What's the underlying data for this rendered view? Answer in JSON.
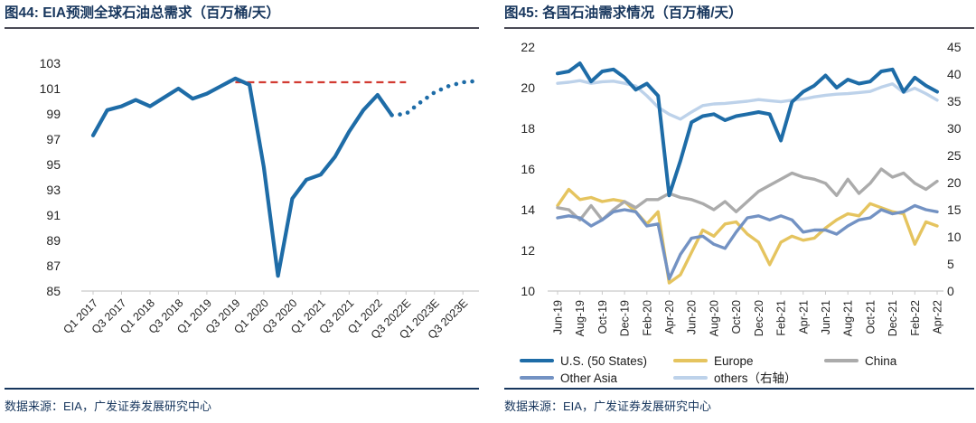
{
  "figures": [
    {
      "id": "fig44",
      "title": "图44:  EIA预测全球石油总需求（百万桶/天）",
      "source": "数据来源：EIA，广发证券发展研究中心"
    },
    {
      "id": "fig45",
      "title": "图45:  各国石油需求情况（百万桶/天）",
      "source": "数据来源：EIA，广发证券发展研究中心"
    }
  ],
  "colors": {
    "title_navy": "#17365D",
    "us_blue": "#1E6CA7",
    "europe_yellow": "#E5C45F",
    "china_gray": "#ABABAB",
    "other_asia_blue": "#7392C3",
    "others_lightblue": "#BDD2EA",
    "forecast_red": "#D23B32",
    "axis_line": "#C9C9C9",
    "axis_text": "#262626"
  },
  "chart_data": [
    {
      "type": "line",
      "title": "EIA预测全球石油总需求（百万桶/天）",
      "categories": [
        "Q1 2017",
        "Q2 2017",
        "Q3 2017",
        "Q4 2017",
        "Q1 2018",
        "Q2 2018",
        "Q3 2018",
        "Q4 2018",
        "Q1 2019",
        "Q2 2019",
        "Q3 2019",
        "Q4 2019",
        "Q1 2020",
        "Q2 2020",
        "Q3 2020",
        "Q4 2020",
        "Q1 2021",
        "Q2 2021",
        "Q3 2021",
        "Q4 2021",
        "Q1 2022",
        "Q2 2022",
        "Q3 2022E",
        "Q4 2022E",
        "Q1 2023E",
        "Q2 2023E",
        "Q3 2023E",
        "Q4 2023E"
      ],
      "tick_labels": [
        "Q1 2017",
        "Q3 2017",
        "Q1 2018",
        "Q3 2018",
        "Q1 2019",
        "Q3 2019",
        "Q1 2020",
        "Q3 2020",
        "Q1 2021",
        "Q3 2021",
        "Q1 2022",
        "Q3 2022E",
        "Q1 2023E",
        "Q3 2023E"
      ],
      "series": [
        {
          "name": "全球石油总需求",
          "color": "#1E6CA7",
          "values": [
            97.3,
            99.3,
            99.6,
            100.1,
            99.6,
            100.3,
            101.0,
            100.2,
            100.6,
            101.2,
            101.8,
            101.3,
            94.8,
            86.2,
            92.3,
            93.8,
            94.2,
            95.6,
            97.6,
            99.3,
            100.5,
            98.9,
            99.0,
            99.9,
            100.7,
            101.2,
            101.5,
            101.6
          ],
          "solid_through_index": 21,
          "forecast_style": "dotted"
        }
      ],
      "reference_line": {
        "value": 101.5,
        "color": "#D23B32",
        "style": "dashed",
        "start_index": 10,
        "end_index": 22
      },
      "ylim": [
        85,
        103
      ],
      "ytick_step": 2,
      "grid": false,
      "legend_position": "none"
    },
    {
      "type": "line",
      "title": "各国石油需求情况（百万桶/天）",
      "x": [
        "Jun-19",
        "Jul-19",
        "Aug-19",
        "Sep-19",
        "Oct-19",
        "Nov-19",
        "Dec-19",
        "Jan-20",
        "Feb-20",
        "Mar-20",
        "Apr-20",
        "May-20",
        "Jun-20",
        "Jul-20",
        "Aug-20",
        "Sep-20",
        "Oct-20",
        "Nov-20",
        "Dec-20",
        "Jan-21",
        "Feb-21",
        "Mar-21",
        "Apr-21",
        "May-21",
        "Jun-21",
        "Jul-21",
        "Aug-21",
        "Sep-21",
        "Oct-21",
        "Nov-21",
        "Dec-21",
        "Jan-22",
        "Feb-22",
        "Mar-22",
        "Apr-22"
      ],
      "tick_every": 2,
      "left_axis": {
        "lim": [
          10,
          22
        ],
        "step": 2
      },
      "right_axis": {
        "lim": [
          0,
          45
        ],
        "step": 5
      },
      "series": [
        {
          "name": "U.S. (50 States)",
          "axis": "left",
          "color": "#1E6CA7",
          "width": 4,
          "values": [
            20.7,
            20.8,
            21.2,
            20.3,
            20.8,
            20.9,
            20.5,
            19.9,
            20.2,
            19.6,
            14.7,
            16.4,
            18.3,
            18.6,
            18.7,
            18.4,
            18.6,
            18.7,
            18.8,
            18.7,
            17.4,
            19.3,
            19.8,
            20.1,
            20.6,
            20.0,
            20.4,
            20.2,
            20.3,
            20.8,
            20.9,
            19.8,
            20.5,
            20.1,
            19.8
          ]
        },
        {
          "name": "Europe",
          "axis": "left",
          "color": "#E5C45F",
          "width": 3.4,
          "values": [
            14.2,
            15.0,
            14.5,
            14.6,
            14.4,
            14.5,
            14.4,
            13.9,
            13.3,
            13.9,
            10.4,
            10.8,
            11.9,
            13.0,
            12.7,
            13.3,
            13.4,
            12.8,
            12.4,
            11.3,
            12.4,
            12.7,
            12.5,
            12.6,
            13.1,
            13.5,
            13.8,
            13.7,
            14.3,
            14.1,
            13.9,
            13.8,
            12.3,
            13.4,
            13.2
          ]
        },
        {
          "name": "China",
          "axis": "left",
          "color": "#ABABAB",
          "width": 3.4,
          "values": [
            14.1,
            14.0,
            13.5,
            14.2,
            13.5,
            14.0,
            14.4,
            14.1,
            14.5,
            14.5,
            14.8,
            14.6,
            14.5,
            14.3,
            14.0,
            14.4,
            13.9,
            14.4,
            14.9,
            15.2,
            15.5,
            15.8,
            15.6,
            15.5,
            15.3,
            14.7,
            15.5,
            14.8,
            15.3,
            16.0,
            15.6,
            15.8,
            15.3,
            15.0,
            15.4
          ]
        },
        {
          "name": "Other Asia",
          "axis": "left",
          "color": "#7392C3",
          "width": 3.4,
          "values": [
            13.6,
            13.7,
            13.6,
            13.2,
            13.5,
            13.9,
            14.0,
            13.9,
            13.2,
            13.3,
            10.6,
            11.8,
            12.6,
            12.7,
            12.3,
            12.1,
            12.9,
            13.6,
            13.7,
            13.5,
            13.7,
            13.5,
            12.9,
            13.0,
            13.0,
            12.8,
            13.2,
            13.5,
            13.6,
            14.0,
            13.8,
            13.9,
            14.2,
            14.0,
            13.9
          ]
        },
        {
          "name": "others（右轴）",
          "axis": "right",
          "color": "#BDD2EA",
          "width": 3.4,
          "values": [
            38.3,
            38.5,
            38.8,
            38.3,
            38.6,
            38.7,
            38.3,
            37.8,
            36.0,
            33.9,
            32.6,
            31.7,
            33.0,
            34.2,
            34.5,
            34.6,
            34.8,
            35.0,
            35.3,
            35.1,
            34.9,
            35.2,
            35.4,
            35.8,
            36.1,
            36.3,
            36.4,
            36.6,
            36.8,
            37.6,
            38.2,
            36.6,
            37.4,
            36.4,
            35.2
          ]
        }
      ],
      "legend": {
        "position": "bottom",
        "rows": [
          [
            "U.S. (50 States)",
            "Europe",
            "China"
          ],
          [
            "Other Asia",
            "others（右轴）"
          ]
        ]
      },
      "grid": false
    }
  ]
}
